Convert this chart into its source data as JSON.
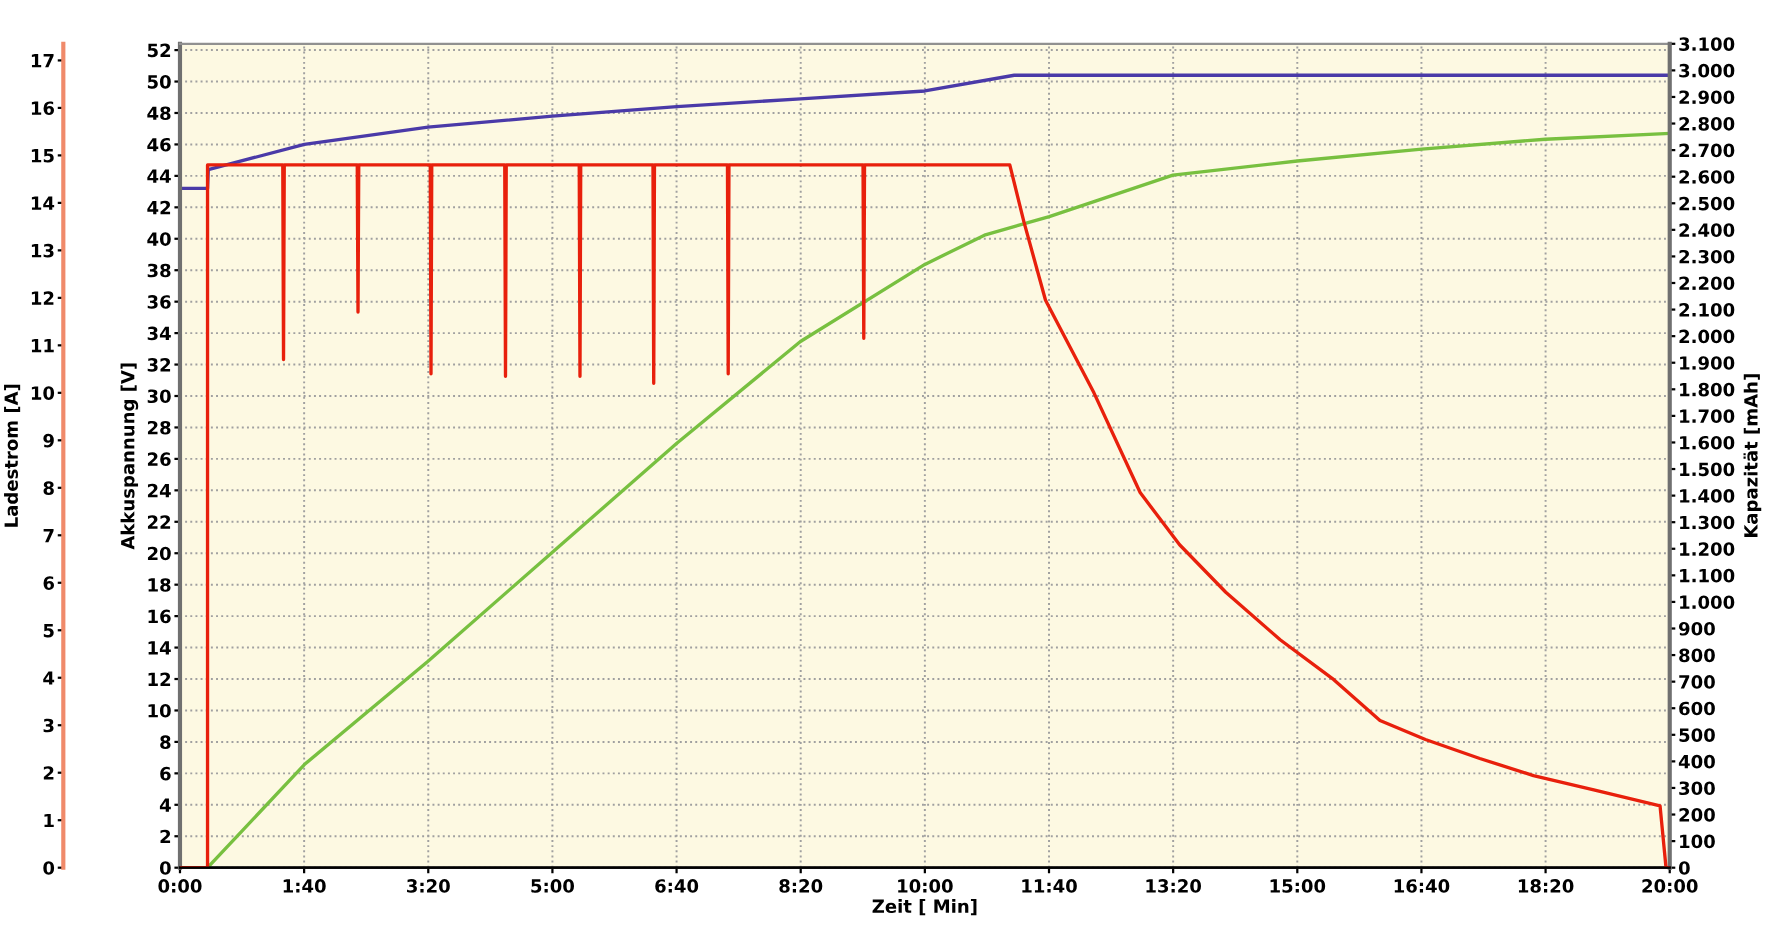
{
  "chart_data": {
    "type": "line",
    "xlabel": "Zeit [ Min]",
    "ylabel": "Akkuspannung [V]",
    "y2label": "Kapazität [mAh]",
    "y3label": "Ladestrom [A]",
    "xlim": [
      0,
      20
    ],
    "xticks": [
      {
        "value": 0,
        "label": "0:00"
      },
      {
        "value": 1.6667,
        "label": "1:40"
      },
      {
        "value": 3.3333,
        "label": "3:20"
      },
      {
        "value": 5,
        "label": "5:00"
      },
      {
        "value": 6.6667,
        "label": "6:40"
      },
      {
        "value": 8.3333,
        "label": "8:20"
      },
      {
        "value": 10,
        "label": "10:00"
      },
      {
        "value": 11.6667,
        "label": "11:40"
      },
      {
        "value": 13.3333,
        "label": "13:20"
      },
      {
        "value": 15,
        "label": "15:00"
      },
      {
        "value": 16.6667,
        "label": "16:40"
      },
      {
        "value": 18.3333,
        "label": "18:20"
      },
      {
        "value": 20,
        "label": "20:00"
      }
    ],
    "ylim": [
      0,
      52.4
    ],
    "yticks": [
      0,
      2,
      4,
      6,
      8,
      10,
      12,
      14,
      16,
      18,
      20,
      22,
      24,
      26,
      28,
      30,
      32,
      34,
      36,
      38,
      40,
      42,
      44,
      46,
      48,
      50,
      52
    ],
    "y2lim": [
      0,
      3100
    ],
    "y2ticks": [
      0,
      100,
      200,
      300,
      400,
      500,
      600,
      700,
      800,
      900,
      {
        "value": 1000,
        "label": "1.000"
      },
      {
        "value": 1100,
        "label": "1.100"
      },
      {
        "value": 1200,
        "label": "1.200"
      },
      {
        "value": 1300,
        "label": "1.300"
      },
      {
        "value": 1400,
        "label": "1.400"
      },
      {
        "value": 1500,
        "label": "1.500"
      },
      {
        "value": 1600,
        "label": "1.600"
      },
      {
        "value": 1700,
        "label": "1.700"
      },
      {
        "value": 1800,
        "label": "1.800"
      },
      {
        "value": 1900,
        "label": "1.900"
      },
      {
        "value": 2000,
        "label": "2.000"
      },
      {
        "value": 2100,
        "label": "2.100"
      },
      {
        "value": 2200,
        "label": "2.200"
      },
      {
        "value": 2300,
        "label": "2.300"
      },
      {
        "value": 2400,
        "label": "2.400"
      },
      {
        "value": 2500,
        "label": "2.500"
      },
      {
        "value": 2600,
        "label": "2.600"
      },
      {
        "value": 2700,
        "label": "2.700"
      },
      {
        "value": 2800,
        "label": "2.800"
      },
      {
        "value": 2900,
        "label": "2.900"
      },
      {
        "value": 3000,
        "label": "3.000"
      },
      {
        "value": 3100,
        "label": "3.100"
      }
    ],
    "y3lim": [
      0,
      17.35
    ],
    "y3ticks": [
      0,
      1,
      2,
      3,
      4,
      5,
      6,
      7,
      8,
      9,
      10,
      11,
      12,
      13,
      14,
      15,
      16,
      17
    ],
    "grid": true,
    "series": [
      {
        "color": "#4a3aa8",
        "axis": "y",
        "x": [
          0,
          0,
          0.37,
          0.38,
          1.67,
          3.33,
          5,
          6.67,
          8.33,
          10,
          11.2,
          11.67,
          20
        ],
        "values": [
          0,
          43.2,
          43.2,
          44.4,
          46.0,
          47.1,
          47.8,
          48.4,
          48.9,
          49.4,
          50.4,
          50.4,
          50.4
        ]
      },
      {
        "color": "#78c040",
        "axis": "y2",
        "x": [
          0,
          0.37,
          1.67,
          3.33,
          5,
          6.67,
          8.33,
          10,
          10.8,
          11.67,
          13.33,
          15,
          16.67,
          18.33,
          20
        ],
        "values": [
          0,
          0,
          388,
          777,
          1187,
          1597,
          1980,
          2270,
          2380,
          2450,
          2606,
          2659,
          2704,
          2741,
          2763
        ]
      },
      {
        "color": "#e8200c",
        "axis": "y3",
        "x": [
          0,
          0.37,
          0.37,
          1.38,
          1.39,
          1.4,
          2.38,
          2.39,
          2.4,
          3.36,
          3.37,
          3.38,
          4.36,
          4.37,
          4.38,
          5.36,
          5.37,
          5.38,
          6.35,
          6.36,
          6.37,
          7.35,
          7.36,
          7.37,
          9.17,
          9.18,
          9.19,
          11.14,
          11.33,
          11.62,
          12.27,
          12.89,
          13.42,
          14.04,
          14.77,
          15.49,
          16.11,
          16.72,
          17.45,
          18.17,
          18.98,
          19.87,
          19.95,
          20
        ],
        "values": [
          0,
          0,
          14.8,
          14.8,
          10.7,
          14.8,
          14.8,
          11.7,
          14.8,
          14.8,
          10.4,
          14.8,
          14.8,
          10.35,
          14.8,
          14.8,
          10.35,
          14.8,
          14.8,
          10.2,
          14.8,
          14.8,
          10.4,
          14.8,
          14.8,
          11.15,
          14.8,
          14.8,
          13.6,
          11.95,
          10.0,
          7.9,
          6.8,
          5.8,
          4.8,
          3.96,
          3.1,
          2.7,
          2.3,
          1.94,
          1.64,
          1.3,
          0,
          0
        ]
      }
    ]
  }
}
